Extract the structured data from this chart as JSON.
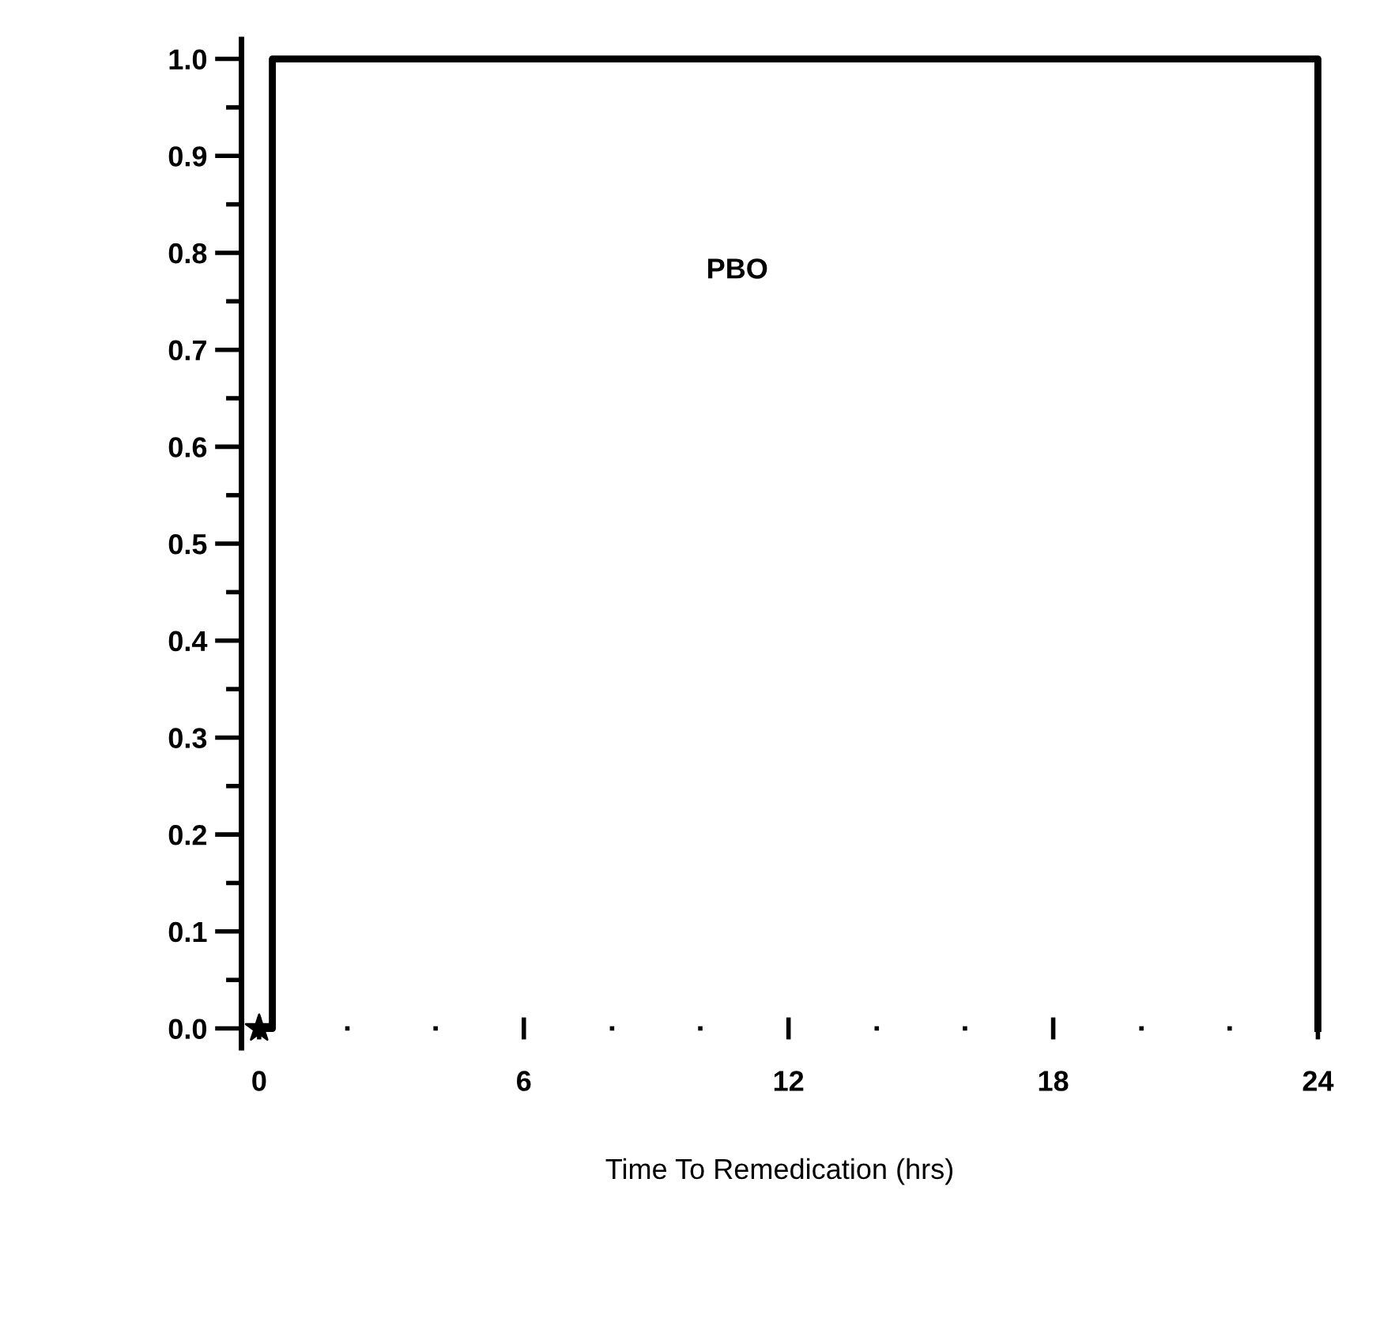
{
  "chart_data": {
    "type": "step",
    "xlabel": "Time To Remedication (hrs)",
    "xlim": [
      -0.4,
      24
    ],
    "xticks": [
      0,
      6,
      12,
      18,
      24
    ],
    "ylim": [
      -0.02,
      1.02
    ],
    "yticks": [
      {
        "value": 0,
        "label": "0.0"
      },
      {
        "value": 0.1,
        "label": "0.1"
      },
      {
        "value": 0.2,
        "label": "0.2"
      },
      {
        "value": 0.3,
        "label": "0.3"
      },
      {
        "value": 0.4,
        "label": "0.4"
      },
      {
        "value": 0.5,
        "label": "0.5"
      },
      {
        "value": 0.6,
        "label": "0.6"
      },
      {
        "value": 0.7,
        "label": "0.7"
      },
      {
        "value": 0.8,
        "label": "0.8"
      },
      {
        "value": 0.9,
        "label": "0.9"
      },
      {
        "value": 1.0,
        "label": "1.0"
      }
    ],
    "grid": false,
    "legend": false,
    "series": [
      {
        "name": "PBO",
        "color": "#000000",
        "x": [
          0,
          0.3,
          24
        ],
        "values": [
          0,
          1.0,
          0
        ],
        "marker": "none",
        "line_style": "solid"
      },
      {
        "type": "scatter",
        "color": "#000000",
        "x": [
          0
        ],
        "values": [
          0
        ],
        "marker": "star"
      }
    ]
  }
}
